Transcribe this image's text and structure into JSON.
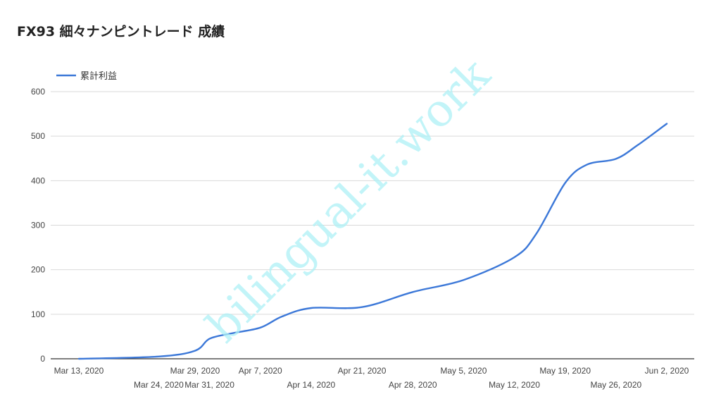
{
  "chart_data": {
    "type": "line",
    "title": "FX93 細々ナンピントレード 成績",
    "xlabel": "",
    "ylabel": "",
    "ylim": [
      0,
      600
    ],
    "yticks": [
      0,
      100,
      200,
      300,
      400,
      500,
      600
    ],
    "grid": true,
    "legend_position": "top-left",
    "x_ticks_upper": [
      "Mar 13, 2020",
      "Mar 29, 2020",
      "Apr 7, 2020",
      "Apr 21, 2020",
      "May 5, 2020",
      "May 19, 2020",
      "Jun 2, 2020"
    ],
    "x_ticks_lower": [
      "Mar 24, 2020",
      "Mar 31, 2020",
      "Apr 14, 2020",
      "Apr 28, 2020",
      "May 12, 2020",
      "May 26, 2020"
    ],
    "series": [
      {
        "name": "累計利益",
        "color": "#3c78d8",
        "points": [
          [
            "2020-03-13",
            0
          ],
          [
            "2020-03-24",
            5
          ],
          [
            "2020-03-29",
            18
          ],
          [
            "2020-03-31",
            45
          ],
          [
            "2020-04-03",
            57
          ],
          [
            "2020-04-07",
            70
          ],
          [
            "2020-04-10",
            95
          ],
          [
            "2020-04-14",
            114
          ],
          [
            "2020-04-21",
            116
          ],
          [
            "2020-04-28",
            150
          ],
          [
            "2020-05-05",
            177
          ],
          [
            "2020-05-12",
            228
          ],
          [
            "2020-05-15",
            280
          ],
          [
            "2020-05-19",
            395
          ],
          [
            "2020-05-22",
            436
          ],
          [
            "2020-05-26",
            449
          ],
          [
            "2020-05-29",
            480
          ],
          [
            "2020-06-02",
            528
          ]
        ]
      }
    ]
  },
  "watermark": "bilingual-it.work"
}
